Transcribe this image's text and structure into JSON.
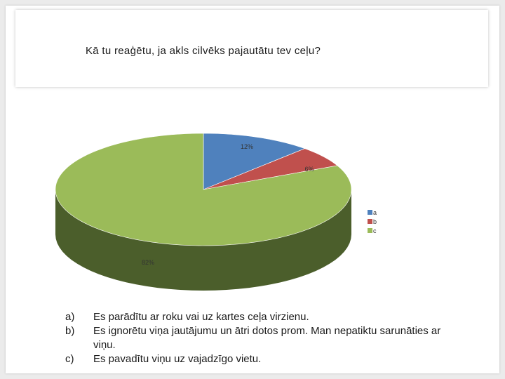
{
  "slide": {
    "title": "Kā tu reaģētu, ja akls cilvēks pajautātu tev ceļu?"
  },
  "chart_data": {
    "type": "pie",
    "style": "3d",
    "labels": [
      "a",
      "b",
      "c"
    ],
    "values": [
      12,
      6,
      82
    ],
    "data_labels": [
      "12%",
      "6%",
      "82%"
    ],
    "colors": [
      "#4f81bd",
      "#c0504d",
      "#9bbb59"
    ],
    "side_colors": [
      "#2d4a72",
      "#7a2e2c",
      "#4b5e2b"
    ],
    "legend": {
      "position": "right",
      "entries": [
        "a",
        "b",
        "c"
      ]
    }
  },
  "answers": [
    {
      "marker": "a)",
      "text": "Es parādītu ar roku vai uz kartes ceļa virzienu."
    },
    {
      "marker": "b)",
      "text": "Es ignorētu viņa jautājumu un ātri dotos prom. Man nepatiktu sarunāties ar viņu."
    },
    {
      "marker": "c)",
      "text": "Es pavadītu viņu uz vajadzīgo vietu."
    }
  ]
}
